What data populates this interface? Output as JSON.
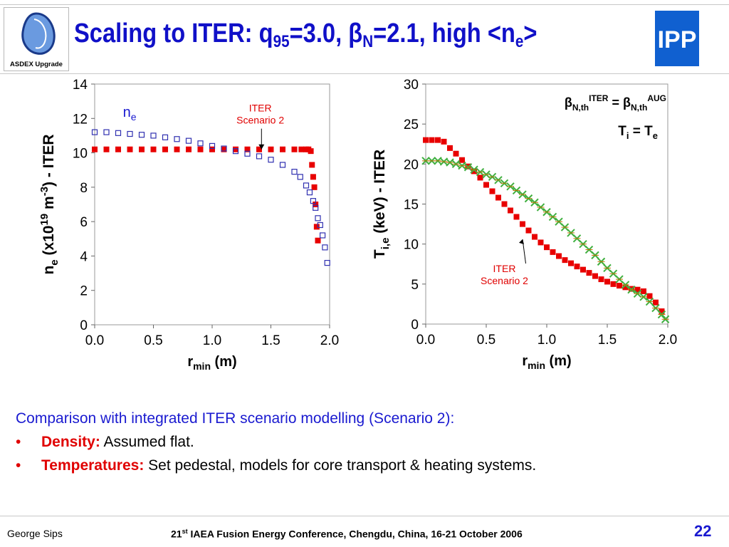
{
  "slide": {
    "title_prefix": "Scaling to ITER: q",
    "title_sub1": "95",
    "title_mid": "=3.0, ",
    "title_beta": "β",
    "title_sub2": "N",
    "title_mid2": "=2.1, high <n",
    "title_sub3": "e",
    "title_suffix": ">",
    "logo_left_label": "ASDEX Upgrade",
    "logo_right_text": "IPP",
    "colors": {
      "title": "#1010c8",
      "accent_red": "#e00000",
      "ipp_blue": "#1060d0"
    }
  },
  "chart_data": [
    {
      "type": "scatter",
      "xlabel": "r",
      "xlabel_sub": "min",
      "xlabel_suffix": " (m)",
      "ylabel_parts": {
        "a": "n",
        "a_sub": "e",
        "b": " (x10",
        "b_sup": "19",
        "c": " m",
        "c_sup": "-3",
        "d": ") - ITER"
      },
      "xlim": [
        0.0,
        2.0
      ],
      "ylim": [
        0,
        14
      ],
      "xticks": [
        "0.0",
        "0.5",
        "1.0",
        "1.5",
        "2.0"
      ],
      "yticks": [
        "0",
        "2",
        "4",
        "6",
        "8",
        "10",
        "12",
        "14"
      ],
      "annotations": [
        {
          "text": "n",
          "sub": "e",
          "x": 0.24,
          "y": 12.1
        },
        {
          "line1": "ITER",
          "line2": "Scenario 2",
          "x": 1.41,
          "y": 12.4,
          "arrow_to": [
            1.42,
            10.2
          ]
        }
      ],
      "series": [
        {
          "marker": "filled-square",
          "color": "#e80000",
          "x": [
            0.0,
            0.1,
            0.2,
            0.3,
            0.4,
            0.5,
            0.6,
            0.7,
            0.8,
            0.9,
            1.0,
            1.1,
            1.2,
            1.3,
            1.4,
            1.5,
            1.6,
            1.7,
            1.76,
            1.8,
            1.82,
            1.84,
            1.85,
            1.86,
            1.87,
            1.88,
            1.89,
            1.9
          ],
          "y": [
            10.2,
            10.2,
            10.2,
            10.2,
            10.2,
            10.2,
            10.2,
            10.2,
            10.2,
            10.2,
            10.2,
            10.2,
            10.2,
            10.2,
            10.2,
            10.2,
            10.2,
            10.2,
            10.2,
            10.2,
            10.2,
            10.1,
            9.3,
            8.6,
            8.0,
            7.0,
            5.7,
            4.9
          ]
        },
        {
          "marker": "open-square",
          "color": "#3030b0",
          "x": [
            0.0,
            0.1,
            0.2,
            0.3,
            0.4,
            0.5,
            0.6,
            0.7,
            0.8,
            0.9,
            1.0,
            1.1,
            1.2,
            1.3,
            1.4,
            1.5,
            1.6,
            1.7,
            1.75,
            1.8,
            1.83,
            1.86,
            1.88,
            1.9,
            1.92,
            1.94,
            1.96,
            1.98
          ],
          "y": [
            11.2,
            11.2,
            11.15,
            11.1,
            11.05,
            11.0,
            10.9,
            10.8,
            10.7,
            10.55,
            10.4,
            10.25,
            10.1,
            9.95,
            9.8,
            9.6,
            9.3,
            8.9,
            8.6,
            8.1,
            7.7,
            7.2,
            6.8,
            6.2,
            5.8,
            5.2,
            4.5,
            3.6
          ]
        }
      ]
    },
    {
      "type": "scatter",
      "xlabel": "r",
      "xlabel_sub": "min",
      "xlabel_suffix": " (m)",
      "ylabel_parts": {
        "a": "T",
        "a_sub": "i,e",
        "b": " (keV) - ITER"
      },
      "xlim": [
        0.0,
        2.0
      ],
      "ylim": [
        0,
        30
      ],
      "xticks": [
        "0.0",
        "0.5",
        "1.0",
        "1.5",
        "2.0"
      ],
      "yticks": [
        "0",
        "5",
        "10",
        "15",
        "20",
        "25",
        "30"
      ],
      "annotations": [
        {
          "line1": "ITER",
          "line2": "Scenario 2",
          "x": 0.65,
          "y": 6.5,
          "arrow_to": [
            0.8,
            10.6
          ]
        },
        {
          "beta1": "β",
          "beta1_sub": "N,th",
          "beta1_sup": "ITER",
          "eq": " = ",
          "beta2": "β",
          "beta2_sub": "N,th",
          "beta2_sup": "AUG"
        },
        {
          "t1": "T",
          "t1_sub": "i",
          "eq": " = ",
          "t2": "T",
          "t2_sub": "e"
        }
      ],
      "series": [
        {
          "marker": "filled-square",
          "color": "#e80000",
          "x": [
            0.0,
            0.05,
            0.1,
            0.15,
            0.2,
            0.25,
            0.3,
            0.35,
            0.4,
            0.45,
            0.5,
            0.55,
            0.6,
            0.65,
            0.7,
            0.75,
            0.8,
            0.85,
            0.9,
            0.95,
            1.0,
            1.05,
            1.1,
            1.15,
            1.2,
            1.25,
            1.3,
            1.35,
            1.4,
            1.45,
            1.5,
            1.55,
            1.6,
            1.65,
            1.7,
            1.75,
            1.8,
            1.85,
            1.9,
            1.95
          ],
          "y": [
            23.0,
            23.0,
            23.0,
            22.8,
            22.0,
            21.3,
            20.5,
            19.7,
            19.1,
            18.3,
            17.4,
            16.6,
            15.8,
            15.0,
            14.2,
            13.4,
            12.5,
            11.7,
            10.9,
            10.2,
            9.6,
            9.0,
            8.5,
            8.0,
            7.6,
            7.2,
            6.8,
            6.4,
            6.0,
            5.6,
            5.3,
            5.0,
            4.8,
            4.6,
            4.4,
            4.3,
            4.1,
            3.5,
            2.7,
            1.6
          ]
        },
        {
          "marker": "green-cross",
          "color": "#40b040",
          "x": [
            0.0,
            0.05,
            0.1,
            0.15,
            0.2,
            0.25,
            0.3,
            0.35,
            0.4,
            0.45,
            0.5,
            0.55,
            0.6,
            0.65,
            0.7,
            0.75,
            0.8,
            0.85,
            0.9,
            0.95,
            1.0,
            1.05,
            1.1,
            1.15,
            1.2,
            1.25,
            1.3,
            1.35,
            1.4,
            1.45,
            1.5,
            1.55,
            1.6,
            1.65,
            1.7,
            1.75,
            1.8,
            1.85,
            1.9,
            1.95,
            1.98
          ],
          "y": [
            20.4,
            20.4,
            20.4,
            20.3,
            20.2,
            20.0,
            19.8,
            19.6,
            19.3,
            19.0,
            18.7,
            18.4,
            18.0,
            17.6,
            17.2,
            16.7,
            16.2,
            15.7,
            15.2,
            14.6,
            14.0,
            13.4,
            12.8,
            12.1,
            11.4,
            10.7,
            10.0,
            9.3,
            8.6,
            7.8,
            7.0,
            6.3,
            5.6,
            4.9,
            4.3,
            3.8,
            3.4,
            2.8,
            2.0,
            1.2,
            0.6
          ]
        }
      ]
    }
  ],
  "bullets": {
    "intro": "Comparison with integrated ITER scenario modelling (Scenario 2):",
    "items": [
      {
        "bullet": "•",
        "key": "Density:",
        "text": " Assumed flat."
      },
      {
        "bullet": "•",
        "key": "Temperatures:",
        "text": " Set pedestal, models for core transport & heating systems."
      }
    ]
  },
  "footer": {
    "author": "George Sips",
    "conf_ord": "21",
    "conf_sup": "st",
    "conf_rest": " IAEA Fusion Energy Conference, Chengdu, China, 16-21 October 2006",
    "page": "22"
  }
}
